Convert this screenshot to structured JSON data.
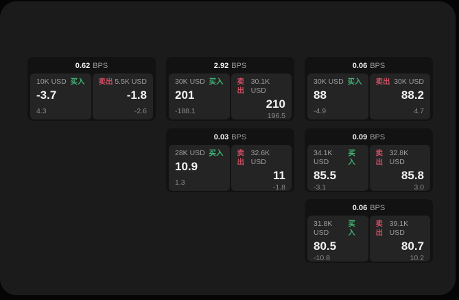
{
  "theme": {
    "outer_bg": "#050505",
    "window_bg": "#1b1b1b",
    "card_bg": "#121212",
    "panel_bg": "#242424",
    "text_primary": "#f2f2f2",
    "text_secondary": "#9e9e9e",
    "text_dim": "#8a8a8a",
    "buy_green": "#42b374",
    "sell_red": "#cb4f63"
  },
  "labels": {
    "bps_unit": "BPS",
    "buy": "买入",
    "sell": "卖出"
  },
  "cards": [
    {
      "col": 1,
      "row": 1,
      "bps": "0.62",
      "buy": {
        "size": "10K USD",
        "price": "-3.7",
        "delta": "4.3"
      },
      "sell": {
        "size": "5.5K USD",
        "price": "-1.8",
        "delta": "-2.6"
      }
    },
    {
      "col": 2,
      "row": 1,
      "bps": "2.92",
      "buy": {
        "size": "30K USD",
        "price": "201",
        "delta": "-188.1"
      },
      "sell": {
        "size": "30.1K USD",
        "price": "210",
        "delta": "196.5"
      }
    },
    {
      "col": 3,
      "row": 1,
      "bps": "0.06",
      "buy": {
        "size": "30K USD",
        "price": "88",
        "delta": "-4.9"
      },
      "sell": {
        "size": "30K USD",
        "price": "88.2",
        "delta": "4.7"
      }
    },
    {
      "col": 2,
      "row": 2,
      "bps": "0.03",
      "buy": {
        "size": "28K USD",
        "price": "10.9",
        "delta": "1.3"
      },
      "sell": {
        "size": "32.6K USD",
        "price": "11",
        "delta": "-1.8"
      }
    },
    {
      "col": 3,
      "row": 2,
      "bps": "0.09",
      "buy": {
        "size": "34.1K USD",
        "price": "85.5",
        "delta": "-3.1"
      },
      "sell": {
        "size": "32.8K USD",
        "price": "85.8",
        "delta": "3.0"
      }
    },
    {
      "col": 3,
      "row": 3,
      "bps": "0.06",
      "buy": {
        "size": "31.8K USD",
        "price": "80.5",
        "delta": "-10.8"
      },
      "sell": {
        "size": "39.1K USD",
        "price": "80.7",
        "delta": "10.2"
      }
    }
  ]
}
